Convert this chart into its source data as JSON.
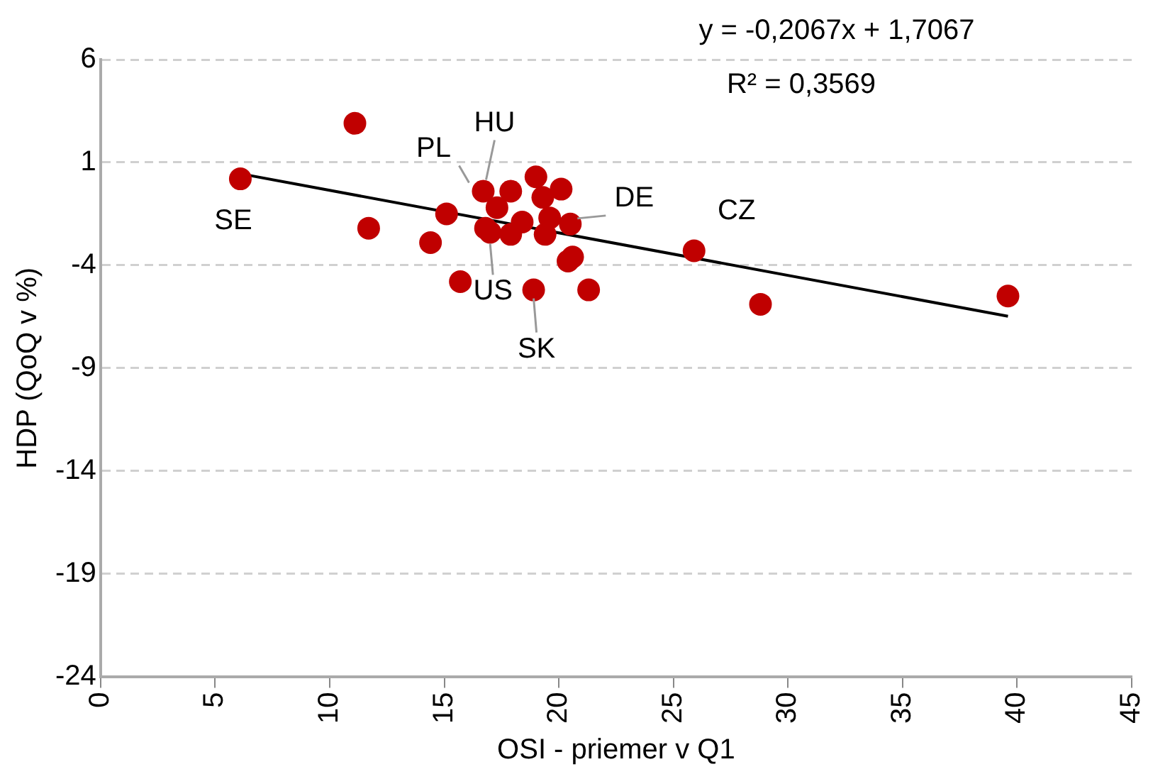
{
  "chart_data": {
    "type": "scatter",
    "xlabel": "OSI - priemer v Q1",
    "ylabel": "HDP (QoQ v %)",
    "xlim": [
      0,
      45
    ],
    "xticks": [
      0,
      5,
      10,
      15,
      20,
      25,
      30,
      35,
      40,
      45
    ],
    "ylim": [
      -24,
      6
    ],
    "yticks": [
      -24,
      -19,
      -14,
      -9,
      -4,
      1,
      6
    ],
    "grid": "y",
    "marker": "circle",
    "legend": false,
    "series": [
      {
        "color": "#c00000",
        "x": [
          11.1,
          6.1,
          11.7,
          15.1,
          14.4,
          15.7,
          16.7,
          17.9,
          19.0,
          20.1,
          19.3,
          17.3,
          16.8,
          17.0,
          17.9,
          18.4,
          19.4,
          19.6,
          20.5,
          20.6,
          20.4,
          18.9,
          21.3,
          25.9,
          28.8,
          39.6
        ],
        "values": [
          2.9,
          0.2,
          -2.2,
          -1.5,
          -2.9,
          -4.8,
          -0.4,
          -0.4,
          0.3,
          -0.3,
          -0.7,
          -1.2,
          -2.2,
          -2.4,
          -2.5,
          -1.9,
          -2.5,
          -1.7,
          -2.0,
          -3.6,
          -3.8,
          -5.2,
          -5.2,
          -3.3,
          -5.9,
          -5.5
        ]
      },
      {
        "type": "line",
        "color": "#000000",
        "marker": "none",
        "x": [
          6.1,
          39.6
        ],
        "values": [
          0.45,
          -6.48
        ]
      }
    ],
    "annotations": [
      "y = -0,2067x + 1,7067",
      "R² = 0,3569",
      {
        "text": "SE",
        "x": 6.1,
        "y": 0.2
      },
      {
        "text": "HU",
        "x": 16.7,
        "y": -0.4
      },
      {
        "text": "PL",
        "x": 16.7,
        "y": -0.4
      },
      {
        "text": "US",
        "x": 17.0,
        "y": -2.4
      },
      {
        "text": "DE",
        "x": 20.5,
        "y": -2.0
      },
      {
        "text": "SK",
        "x": 18.9,
        "y": -5.2
      },
      {
        "text": "CZ",
        "x": 25.9,
        "y": -3.3
      }
    ]
  }
}
